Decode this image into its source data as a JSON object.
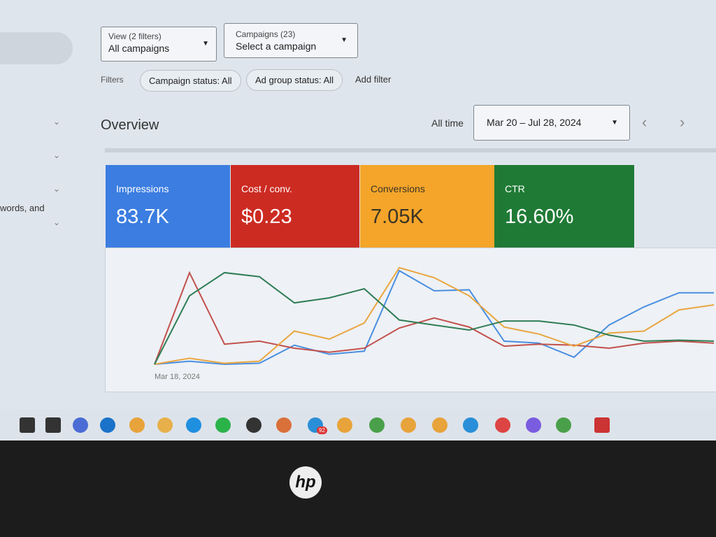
{
  "sidebar": {
    "items": [
      "words, and"
    ]
  },
  "filters_bar": {
    "view": {
      "label": "View (2 filters)",
      "value": "All campaigns"
    },
    "campaigns": {
      "label": "Campaigns (23)",
      "value": "Select a campaign"
    },
    "filters_label": "Filters",
    "chips": [
      "Campaign status: All",
      "Ad group status: All"
    ],
    "add_filter": "Add filter"
  },
  "overview": {
    "title": "Overview",
    "range_label": "All time",
    "date_range": "Mar 20 – Jul 28, 2024"
  },
  "metrics": [
    {
      "name": "Impressions",
      "value": "83.7K",
      "color": "#3b7de0",
      "text_color": "#ffffff"
    },
    {
      "name": "Cost / conv.",
      "value": "$0.23",
      "color": "#cc2b22",
      "text_color": "#ffffff"
    },
    {
      "name": "Conversions",
      "value": "7.05K",
      "color": "#f4a52a",
      "text_color": "#3a3326"
    },
    {
      "name": "CTR",
      "value": "16.60%",
      "color": "#1f7a35",
      "text_color": "#ffffff"
    }
  ],
  "chart_data": {
    "type": "line",
    "categories": [
      "Mar 18, 2024",
      null,
      null,
      null,
      null,
      null,
      null,
      null,
      null,
      null,
      null,
      null,
      null,
      null,
      null,
      null,
      null
    ],
    "ylim": [
      0,
      100
    ],
    "series": [
      {
        "name": "Impressions",
        "color": "#4a8fe0",
        "values": [
          0,
          3,
          0,
          1,
          19,
          10,
          13,
          93,
          73,
          74,
          23,
          21,
          7,
          39,
          57,
          71,
          71
        ]
      },
      {
        "name": "Cost / conv.",
        "color": "#c2504c",
        "values": [
          0,
          91,
          20,
          23,
          16,
          12,
          16,
          36,
          46,
          37,
          18,
          20,
          19,
          16,
          21,
          23,
          21
        ]
      },
      {
        "name": "Conversions",
        "color": "#e9a640",
        "values": [
          0,
          6,
          1,
          3,
          33,
          25,
          41,
          96,
          86,
          68,
          37,
          30,
          18,
          31,
          33,
          54,
          59
        ]
      },
      {
        "name": "CTR",
        "color": "#2e7d55",
        "values": [
          0,
          68,
          91,
          87,
          61,
          66,
          75,
          44,
          39,
          34,
          43,
          43,
          39,
          29,
          23,
          24,
          23
        ]
      }
    ]
  },
  "taskbar": {
    "badge": "92"
  }
}
